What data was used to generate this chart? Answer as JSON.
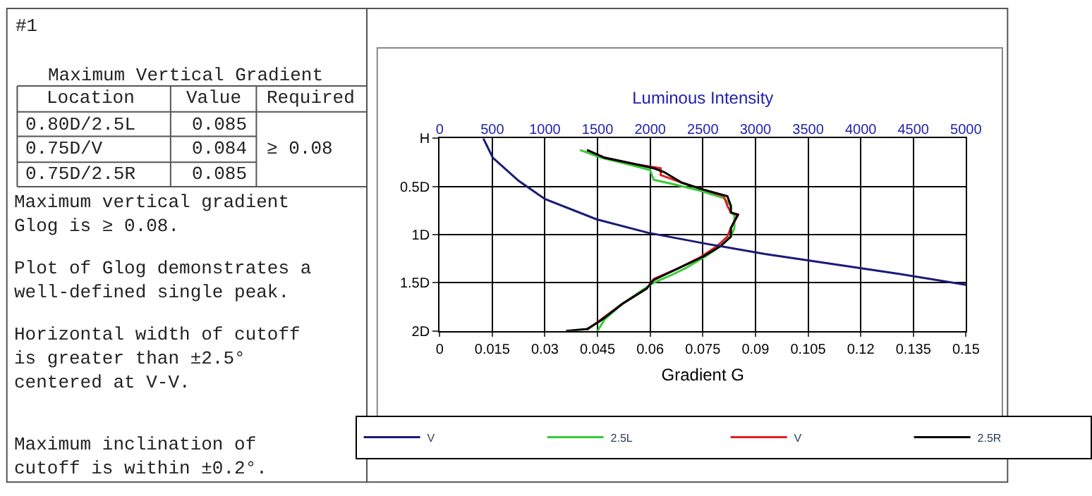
{
  "chart_data": {
    "type": "line",
    "xlabel": "Gradient G",
    "x2label": "Luminous Intensity",
    "xlim": [
      0,
      0.15
    ],
    "xticks": [
      0,
      0.015,
      0.03,
      0.045,
      0.06,
      0.075,
      0.09,
      0.105,
      0.12,
      0.135,
      0.15
    ],
    "x2lim": [
      0,
      5000
    ],
    "x2ticks": [
      0,
      500,
      1000,
      1500,
      2000,
      2500,
      3000,
      3500,
      4000,
      4500,
      5000
    ],
    "ylim": [
      2,
      0
    ],
    "yticks": [
      {
        "value": 0,
        "label": "H"
      },
      {
        "value": 0.5,
        "label": "0.5D"
      },
      {
        "value": 1,
        "label": "1D"
      },
      {
        "value": 1.5,
        "label": "1.5D"
      },
      {
        "value": 2,
        "label": "2D"
      }
    ],
    "grid": true,
    "legend": "bottom",
    "marker": "none",
    "line_style": "solid",
    "series": [
      {
        "name": "V",
        "color": "#1a1a78",
        "axis": "x2",
        "x": [
          415,
          505,
          750,
          1000,
          1490,
          1980,
          2510,
          3090,
          3700,
          4320,
          5000
        ],
        "values": [
          0,
          0.2,
          0.44,
          0.63,
          0.84,
          0.98,
          1.09,
          1.2,
          1.3,
          1.4,
          1.52
        ]
      },
      {
        "name": "2.5L",
        "color": "#33cc33",
        "x": [
          0.04,
          0.046,
          0.055,
          0.06,
          0.061,
          0.066,
          0.074,
          0.081,
          0.083,
          0.083,
          0.084,
          0.084,
          0.083,
          0.08,
          0.076,
          0.07,
          0.066,
          0.061,
          0.058,
          0.052,
          0.047,
          0.045
        ],
        "values": [
          0.12,
          0.2,
          0.28,
          0.33,
          0.43,
          0.47,
          0.54,
          0.62,
          0.7,
          0.77,
          0.8,
          0.93,
          1.02,
          1.12,
          1.22,
          1.35,
          1.42,
          1.5,
          1.57,
          1.72,
          1.88,
          2.0
        ]
      },
      {
        "name": "V",
        "color": "#e02020",
        "x": [
          0.042,
          0.047,
          0.056,
          0.063,
          0.063,
          0.069,
          0.075,
          0.081,
          0.082,
          0.083,
          0.085,
          0.083,
          0.082,
          0.079,
          0.074,
          0.068,
          0.061,
          0.059,
          0.052,
          0.046,
          0.042
        ],
        "values": [
          0.12,
          0.2,
          0.27,
          0.31,
          0.38,
          0.46,
          0.53,
          0.6,
          0.7,
          0.77,
          0.8,
          0.93,
          1.02,
          1.12,
          1.24,
          1.35,
          1.46,
          1.56,
          1.72,
          1.88,
          1.99
        ]
      },
      {
        "name": "2.5R",
        "color": "#000000",
        "x": [
          0.042,
          0.047,
          0.056,
          0.061,
          0.064,
          0.069,
          0.075,
          0.082,
          0.083,
          0.083,
          0.085,
          0.083,
          0.083,
          0.08,
          0.075,
          0.068,
          0.061,
          0.059,
          0.052,
          0.046,
          0.042,
          0.036
        ],
        "values": [
          0.12,
          0.2,
          0.27,
          0.31,
          0.35,
          0.46,
          0.53,
          0.6,
          0.7,
          0.77,
          0.79,
          0.93,
          1.02,
          1.12,
          1.23,
          1.35,
          1.47,
          1.56,
          1.72,
          1.89,
          1.98,
          2.0
        ]
      }
    ],
    "annotations": [
      "#1",
      "Maximum Vertical Gradient",
      "Location",
      "Value",
      "Required",
      "0.80D/2.5L",
      "0.085",
      "0.75D/V",
      "0.084",
      "0.75D/2.5R",
      "0.085",
      "≥ 0.08",
      "Maximum vertical gradient\nGlog is ≥ 0.08.",
      "Plot of Glog demonstrates a\nwell-defined single peak.",
      "Horizontal width of cutoff\nis greater than ±2.5°\ncentered at V-V.",
      "Maximum inclination of\ncutoff is within ±0.2°."
    ]
  }
}
